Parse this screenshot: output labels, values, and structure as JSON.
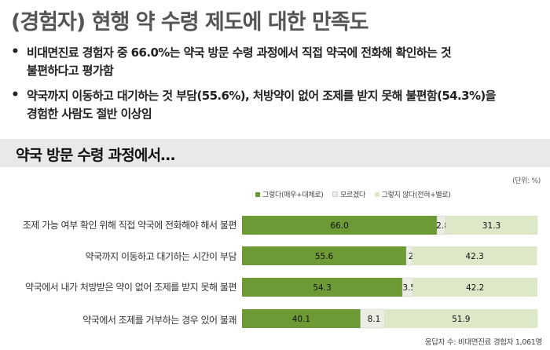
{
  "title": "(경험자) 현행 약 수령 제도에 대한 만족도",
  "bullets": [
    {
      "lines": [
        "비대면진료 경험자 중 66.0%는 약국 방문 수령 과정에서 직접 약국에 전화해 확인하는 것",
        "불편하다고 평가함"
      ]
    },
    {
      "lines": [
        "약국까지 이동하고 대기하는 것 부담(55.6%), 처방약이 없어 조제를 받지 못해 불편함(54.3%)을",
        "경험한 사람도 절반 이상임"
      ]
    }
  ],
  "section_title": "약국 방문 수령 과정에서…",
  "unit_label": "(단위: %)",
  "source": "응답자 수: 비대면진료 경험자 1,061명",
  "colors": {
    "agree": "#6e9a36",
    "neutral": "#eceee4",
    "disagree": "#dde8c8"
  },
  "chart_data": {
    "type": "bar",
    "orientation": "horizontal",
    "stacked": true,
    "title": "",
    "xlim": [
      0,
      100
    ],
    "categories": [
      "조제 가능 여부 확인 위해 직접 약국에 전화해야 해서 불편",
      "약국까지 이동하고 대기하는 시간이 부담",
      "약국에서 내가 처방받은 약이 없어 조제를 받지 못해 불편",
      "약국에서 조제를 거부하는 경우 있어 불쾌"
    ],
    "series": [
      {
        "name": "그렇다(매우+대체로)",
        "values": [
          66.0,
          55.6,
          54.3,
          40.1
        ]
      },
      {
        "name": "모르겠다",
        "values": [
          2.8,
          2,
          3.5,
          8.1
        ]
      },
      {
        "name": "그렇지 않다(전혀+별로)",
        "values": [
          31.3,
          42.3,
          42.2,
          51.9
        ]
      }
    ],
    "value_labels": [
      [
        "66.0",
        "2.8",
        "31.3"
      ],
      [
        "55.6",
        "2",
        "42.3"
      ],
      [
        "54.3",
        "3.5",
        "42.2"
      ],
      [
        "40.1",
        "8.1",
        "51.9"
      ]
    ],
    "legend_position": "top"
  }
}
